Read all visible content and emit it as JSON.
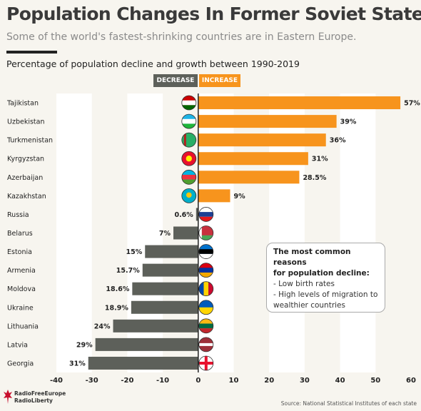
{
  "header": {
    "title": "Population Changes In Former Soviet States",
    "subtitle": "Some of the world's fastest-shrinking countries are in Eastern Europe.",
    "chart_heading": "Percentage of population decline and growth between 1990-2019"
  },
  "legend": {
    "decrease": "DECREASE",
    "increase": "INCREASE"
  },
  "note": {
    "heading_1": "The most common reasons",
    "heading_2": "for population decline:",
    "item_1": "- Low birth rates",
    "item_2": "- High levels of migration to",
    "item_3": "wealthier countries"
  },
  "footer": {
    "source": "Source: National Statistical Institutes of each state",
    "logo_line_1": "RadioFreeEurope",
    "logo_line_2": "RadioLiberty"
  },
  "colors": {
    "increase": "#f7941d",
    "decrease": "#5d605a",
    "band": "#ffffff"
  },
  "chart_data": {
    "type": "bar",
    "orientation": "horizontal",
    "title": "Percentage of population decline and growth between 1990-2019",
    "categories": [
      "Tajikistan",
      "Uzbekistan",
      "Turkmenistan",
      "Kyrgyzstan",
      "Azerbaijan",
      "Kazakhstan",
      "Russia",
      "Belarus",
      "Estonia",
      "Armenia",
      "Moldova",
      "Ukraine",
      "Lithuania",
      "Latvia",
      "Georgia"
    ],
    "values": [
      57,
      39,
      36,
      31,
      28.5,
      9,
      -0.6,
      -7,
      -15,
      -15.7,
      -18.6,
      -18.9,
      -24,
      -29,
      -31
    ],
    "labels": [
      "57%",
      "39%",
      "36%",
      "31%",
      "28.5%",
      "9%",
      "0.6%",
      "7%",
      "15%",
      "15.7%",
      "18.6%",
      "18.9%",
      "24%",
      "29%",
      "31%"
    ],
    "xlim": [
      -40,
      60
    ],
    "xticks": [
      "-40",
      "-30",
      "-20",
      "-10",
      "0",
      "10",
      "20",
      "30",
      "40",
      "50",
      "60"
    ],
    "grid": "alternating vertical bands",
    "flags": [
      "tajikistan-flag-icon",
      "uzbekistan-flag-icon",
      "turkmenistan-flag-icon",
      "kyrgyzstan-flag-icon",
      "azerbaijan-flag-icon",
      "kazakhstan-flag-icon",
      "russia-flag-icon",
      "belarus-flag-icon",
      "estonia-flag-icon",
      "armenia-flag-icon",
      "moldova-flag-icon",
      "ukraine-flag-icon",
      "lithuania-flag-icon",
      "latvia-flag-icon",
      "georgia-flag-icon"
    ]
  }
}
